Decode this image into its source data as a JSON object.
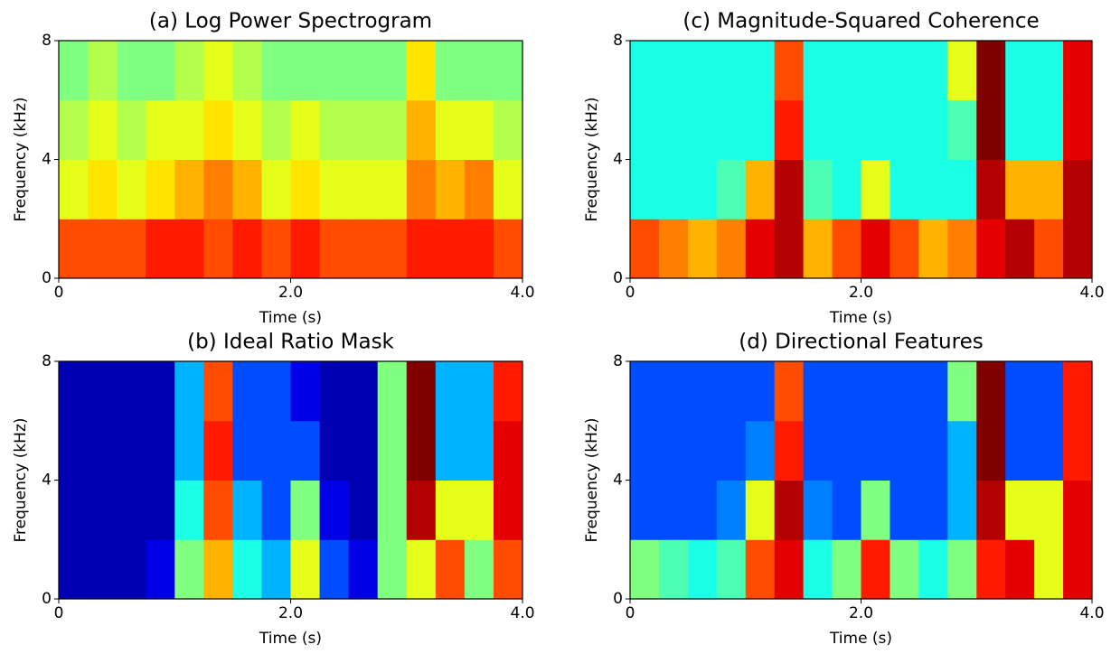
{
  "chart_data": [
    {
      "type": "heatmap",
      "title": "(a) Log Power Spectrogram",
      "x_label": "Time (s)",
      "y_label": "Frequency (kHz)",
      "colormap": "jet",
      "xlim": [
        0,
        4
      ],
      "xticks": [
        0,
        {
          "value": 2,
          "label": "2.0"
        },
        {
          "value": 4,
          "label": "4.0"
        }
      ],
      "ylim": [
        0,
        8
      ],
      "yticks": [
        0,
        4,
        8
      ],
      "values": [
        [
          0.8,
          0.8,
          0.8,
          0.85,
          0.85,
          0.8,
          0.85,
          0.8,
          0.85,
          0.8,
          0.8,
          0.8,
          0.85,
          0.85,
          0.85,
          0.8
        ],
        [
          0.6,
          0.65,
          0.6,
          0.65,
          0.7,
          0.75,
          0.7,
          0.6,
          0.65,
          0.6,
          0.6,
          0.6,
          0.75,
          0.7,
          0.75,
          0.6
        ],
        [
          0.55,
          0.6,
          0.55,
          0.6,
          0.6,
          0.65,
          0.6,
          0.55,
          0.6,
          0.55,
          0.55,
          0.55,
          0.7,
          0.6,
          0.6,
          0.55
        ],
        [
          0.5,
          0.55,
          0.5,
          0.5,
          0.55,
          0.6,
          0.55,
          0.5,
          0.5,
          0.5,
          0.5,
          0.5,
          0.65,
          0.5,
          0.5,
          0.5
        ]
      ]
    },
    {
      "type": "heatmap",
      "title": "(c) Magnitude-Squared Coherence",
      "x_label": "Time (s)",
      "y_label": "Frequency (kHz)",
      "colormap": "jet",
      "xlim": [
        0,
        4
      ],
      "xticks": [
        0,
        {
          "value": 2,
          "label": "2.0"
        },
        {
          "value": 4,
          "label": "4.0"
        }
      ],
      "ylim": [
        0,
        8
      ],
      "yticks": [
        0,
        4,
        8
      ],
      "values": [
        [
          0.8,
          0.75,
          0.7,
          0.75,
          0.9,
          0.95,
          0.7,
          0.8,
          0.9,
          0.8,
          0.7,
          0.75,
          0.9,
          0.95,
          0.8,
          0.95
        ],
        [
          0.4,
          0.4,
          0.4,
          0.45,
          0.7,
          0.95,
          0.45,
          0.4,
          0.6,
          0.4,
          0.4,
          0.4,
          0.95,
          0.7,
          0.7,
          0.95
        ],
        [
          0.4,
          0.4,
          0.4,
          0.4,
          0.4,
          0.85,
          0.4,
          0.4,
          0.4,
          0.4,
          0.4,
          0.45,
          1,
          0.4,
          0.4,
          0.9
        ],
        [
          0.4,
          0.4,
          0.4,
          0.4,
          0.4,
          0.8,
          0.4,
          0.4,
          0.4,
          0.4,
          0.4,
          0.6,
          1,
          0.4,
          0.4,
          0.9
        ]
      ]
    },
    {
      "type": "heatmap",
      "title": "(b) Ideal Ratio Mask",
      "x_label": "Time (s)",
      "y_label": "Frequency (kHz)",
      "colormap": "jet",
      "xlim": [
        0,
        4
      ],
      "xticks": [
        0,
        {
          "value": 2,
          "label": "2.0"
        },
        {
          "value": 4,
          "label": "4.0"
        }
      ],
      "ylim": [
        0,
        8
      ],
      "yticks": [
        0,
        4,
        8
      ],
      "values": [
        [
          0.05,
          0.05,
          0.05,
          0.1,
          0.5,
          0.7,
          0.4,
          0.3,
          0.6,
          0.2,
          0.1,
          0.5,
          0.6,
          0.8,
          0.5,
          0.8
        ],
        [
          0.05,
          0.05,
          0.05,
          0.05,
          0.4,
          0.8,
          0.3,
          0.2,
          0.5,
          0.1,
          0.05,
          0.5,
          0.95,
          0.6,
          0.6,
          0.9
        ],
        [
          0.05,
          0.05,
          0.05,
          0.05,
          0.3,
          0.85,
          0.2,
          0.2,
          0.2,
          0.05,
          0.05,
          0.5,
          1,
          0.3,
          0.3,
          0.9
        ],
        [
          0.05,
          0.05,
          0.05,
          0.05,
          0.3,
          0.8,
          0.2,
          0.2,
          0.1,
          0.05,
          0.05,
          0.5,
          1,
          0.3,
          0.3,
          0.85
        ]
      ]
    },
    {
      "type": "heatmap",
      "title": "(d) Directional Features",
      "x_label": "Time (s)",
      "y_label": "Frequency (kHz)",
      "colormap": "jet",
      "xlim": [
        0,
        4
      ],
      "xticks": [
        0,
        {
          "value": 2,
          "label": "2.0"
        },
        {
          "value": 4,
          "label": "4.0"
        }
      ],
      "ylim": [
        0,
        8
      ],
      "yticks": [
        0,
        4,
        8
      ],
      "values": [
        [
          0.5,
          0.45,
          0.4,
          0.45,
          0.8,
          0.9,
          0.4,
          0.5,
          0.85,
          0.5,
          0.4,
          0.5,
          0.85,
          0.9,
          0.6,
          0.9
        ],
        [
          0.2,
          0.2,
          0.2,
          0.25,
          0.6,
          0.95,
          0.25,
          0.2,
          0.5,
          0.2,
          0.2,
          0.3,
          0.95,
          0.6,
          0.6,
          0.9
        ],
        [
          0.2,
          0.2,
          0.2,
          0.2,
          0.25,
          0.85,
          0.2,
          0.2,
          0.2,
          0.2,
          0.2,
          0.3,
          1,
          0.2,
          0.2,
          0.85
        ],
        [
          0.2,
          0.2,
          0.2,
          0.2,
          0.2,
          0.8,
          0.2,
          0.2,
          0.2,
          0.2,
          0.2,
          0.5,
          1,
          0.2,
          0.2,
          0.85
        ]
      ]
    }
  ]
}
